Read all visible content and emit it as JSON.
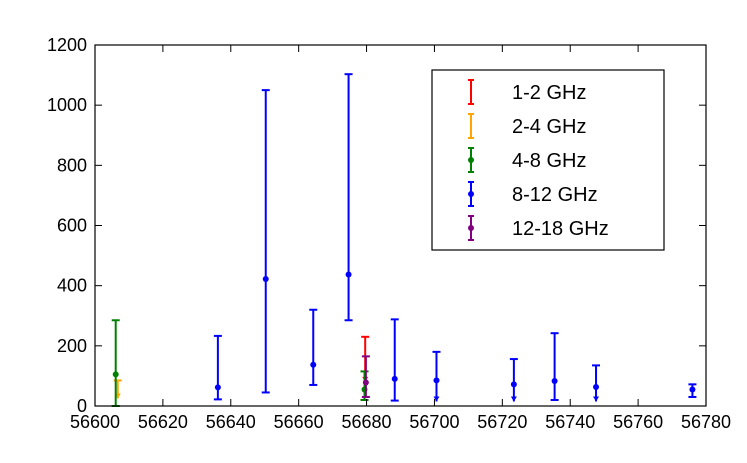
{
  "chart_data": {
    "type": "scatter",
    "title": "",
    "xlabel": "",
    "ylabel": "",
    "xlim": [
      56600,
      56780
    ],
    "ylim": [
      0,
      1200
    ],
    "x_ticks": [
      "56600",
      "56620",
      "56640",
      "56660",
      "56680",
      "56700",
      "56720",
      "56740",
      "56760",
      "56780"
    ],
    "y_ticks": [
      "0",
      "200",
      "400",
      "600",
      "800",
      "1000",
      "1200"
    ],
    "legend_position": "top-right",
    "grid": false,
    "series": [
      {
        "name": "1-2 GHz",
        "color": "#ff0000",
        "points": [
          {
            "x": 56679.6,
            "y": null,
            "low": 80,
            "high": 230,
            "upper_limit": true
          }
        ]
      },
      {
        "name": "2-4 GHz",
        "color": "#ffa500",
        "points": [
          {
            "x": 56606.7,
            "y": null,
            "low": 25,
            "high": 85,
            "upper_limit": true
          }
        ]
      },
      {
        "name": "4-8 GHz",
        "color": "#008000",
        "points": [
          {
            "x": 56606.1,
            "y": 105,
            "low": 0,
            "high": 285,
            "upper_limit": false
          },
          {
            "x": 56679.4,
            "y": 55,
            "low": 20,
            "high": 115,
            "upper_limit": false
          }
        ]
      },
      {
        "name": "8-12 GHz",
        "color": "#0000ff",
        "points": [
          {
            "x": 56636.2,
            "y": 62,
            "low": 22,
            "high": 233,
            "upper_limit": false
          },
          {
            "x": 56650.3,
            "y": 422,
            "low": 45,
            "high": 1050,
            "upper_limit": false
          },
          {
            "x": 56664.3,
            "y": 137,
            "low": 70,
            "high": 320,
            "upper_limit": false
          },
          {
            "x": 56674.7,
            "y": 437,
            "low": 285,
            "high": 1103,
            "upper_limit": false
          },
          {
            "x": 56688.3,
            "y": 90,
            "low": 18,
            "high": 288,
            "upper_limit": false
          },
          {
            "x": 56700.6,
            "y": 85,
            "low": 15,
            "high": 180,
            "upper_limit": true
          },
          {
            "x": 56723.4,
            "y": 72,
            "low": 15,
            "high": 156,
            "upper_limit": true
          },
          {
            "x": 56735.4,
            "y": 83,
            "low": 20,
            "high": 242,
            "upper_limit": false
          },
          {
            "x": 56747.6,
            "y": 63,
            "low": 15,
            "high": 135,
            "upper_limit": true
          },
          {
            "x": 56776.0,
            "y": 55,
            "low": 30,
            "high": 72,
            "upper_limit": false
          }
        ]
      },
      {
        "name": "12-18 GHz",
        "color": "#800080",
        "points": [
          {
            "x": 56679.8,
            "y": 78,
            "low": 30,
            "high": 165,
            "upper_limit": false
          }
        ]
      }
    ]
  }
}
